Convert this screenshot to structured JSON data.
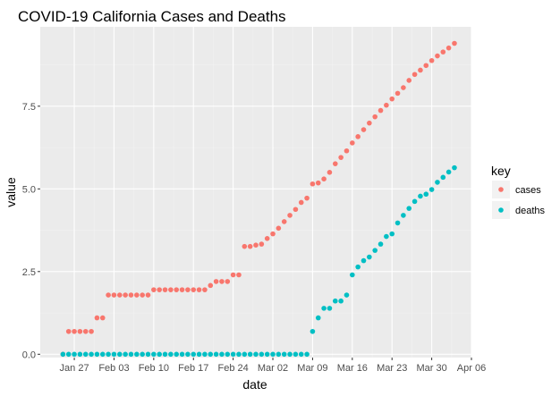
{
  "colors": {
    "panel": "#ebebeb",
    "grid_major": "#ffffff",
    "grid_minor": "#f2f2f2",
    "cases": "#F8766D",
    "deaths": "#00BFC4",
    "legend_key_bg": "#f2f2f2"
  },
  "chart_data": {
    "type": "scatter",
    "title": "COVID-19 California Cases and Deaths",
    "xlabel": "date",
    "ylabel": "value",
    "xlim": [
      "2020-01-21",
      "2020-04-06"
    ],
    "ylim": [
      -0.1,
      9.9
    ],
    "x_ticks": [
      {
        "date": "2020-01-27",
        "label": "Jan 27"
      },
      {
        "date": "2020-02-03",
        "label": "Feb 03"
      },
      {
        "date": "2020-02-10",
        "label": "Feb 10"
      },
      {
        "date": "2020-02-17",
        "label": "Feb 17"
      },
      {
        "date": "2020-02-24",
        "label": "Feb 24"
      },
      {
        "date": "2020-03-02",
        "label": "Mar 02"
      },
      {
        "date": "2020-03-09",
        "label": "Mar 09"
      },
      {
        "date": "2020-03-16",
        "label": "Mar 16"
      },
      {
        "date": "2020-03-23",
        "label": "Mar 23"
      },
      {
        "date": "2020-03-30",
        "label": "Mar 30"
      },
      {
        "date": "2020-04-06",
        "label": "Apr 06"
      }
    ],
    "y_ticks": [
      {
        "value": 0,
        "label": "0.0"
      },
      {
        "value": 2.5,
        "label": "2.5"
      },
      {
        "value": 5,
        "label": "5.0"
      },
      {
        "value": 7.5,
        "label": "7.5"
      }
    ],
    "grid": true,
    "legend": {
      "title": "key",
      "position": "right",
      "entries": [
        "cases",
        "deaths"
      ]
    },
    "start_date": "2020-01-25",
    "series": [
      {
        "name": "cases",
        "values": [
          0,
          0.69,
          0.69,
          0.69,
          0.69,
          0.69,
          1.1,
          1.1,
          1.79,
          1.79,
          1.79,
          1.79,
          1.79,
          1.79,
          1.79,
          1.79,
          1.95,
          1.95,
          1.95,
          1.95,
          1.95,
          1.95,
          1.95,
          1.95,
          1.95,
          1.95,
          2.08,
          2.2,
          2.2,
          2.2,
          2.4,
          2.4,
          3.26,
          3.26,
          3.3,
          3.33,
          3.5,
          3.64,
          3.81,
          4.01,
          4.2,
          4.38,
          4.59,
          4.72,
          5.15,
          5.18,
          5.3,
          5.5,
          5.76,
          5.95,
          6.15,
          6.39,
          6.58,
          6.79,
          6.99,
          7.18,
          7.37,
          7.53,
          7.72,
          7.89,
          8.06,
          8.28,
          8.46,
          8.59,
          8.73,
          8.88,
          9.02,
          9.14,
          9.26,
          9.4
        ]
      },
      {
        "name": "deaths",
        "values": [
          0,
          0,
          0,
          0,
          0,
          0,
          0,
          0,
          0,
          0,
          0,
          0,
          0,
          0,
          0,
          0,
          0,
          0,
          0,
          0,
          0,
          0,
          0,
          0,
          0,
          0,
          0,
          0,
          0,
          0,
          0,
          0,
          0,
          0,
          0,
          0,
          0,
          0,
          0,
          0,
          0,
          0,
          0,
          0,
          0.69,
          1.1,
          1.39,
          1.39,
          1.61,
          1.61,
          1.79,
          2.4,
          2.64,
          2.83,
          2.94,
          3.14,
          3.33,
          3.56,
          3.64,
          3.97,
          4.2,
          4.41,
          4.62,
          4.78,
          4.84,
          4.98,
          5.2,
          5.35,
          5.51,
          5.64
        ]
      }
    ]
  }
}
